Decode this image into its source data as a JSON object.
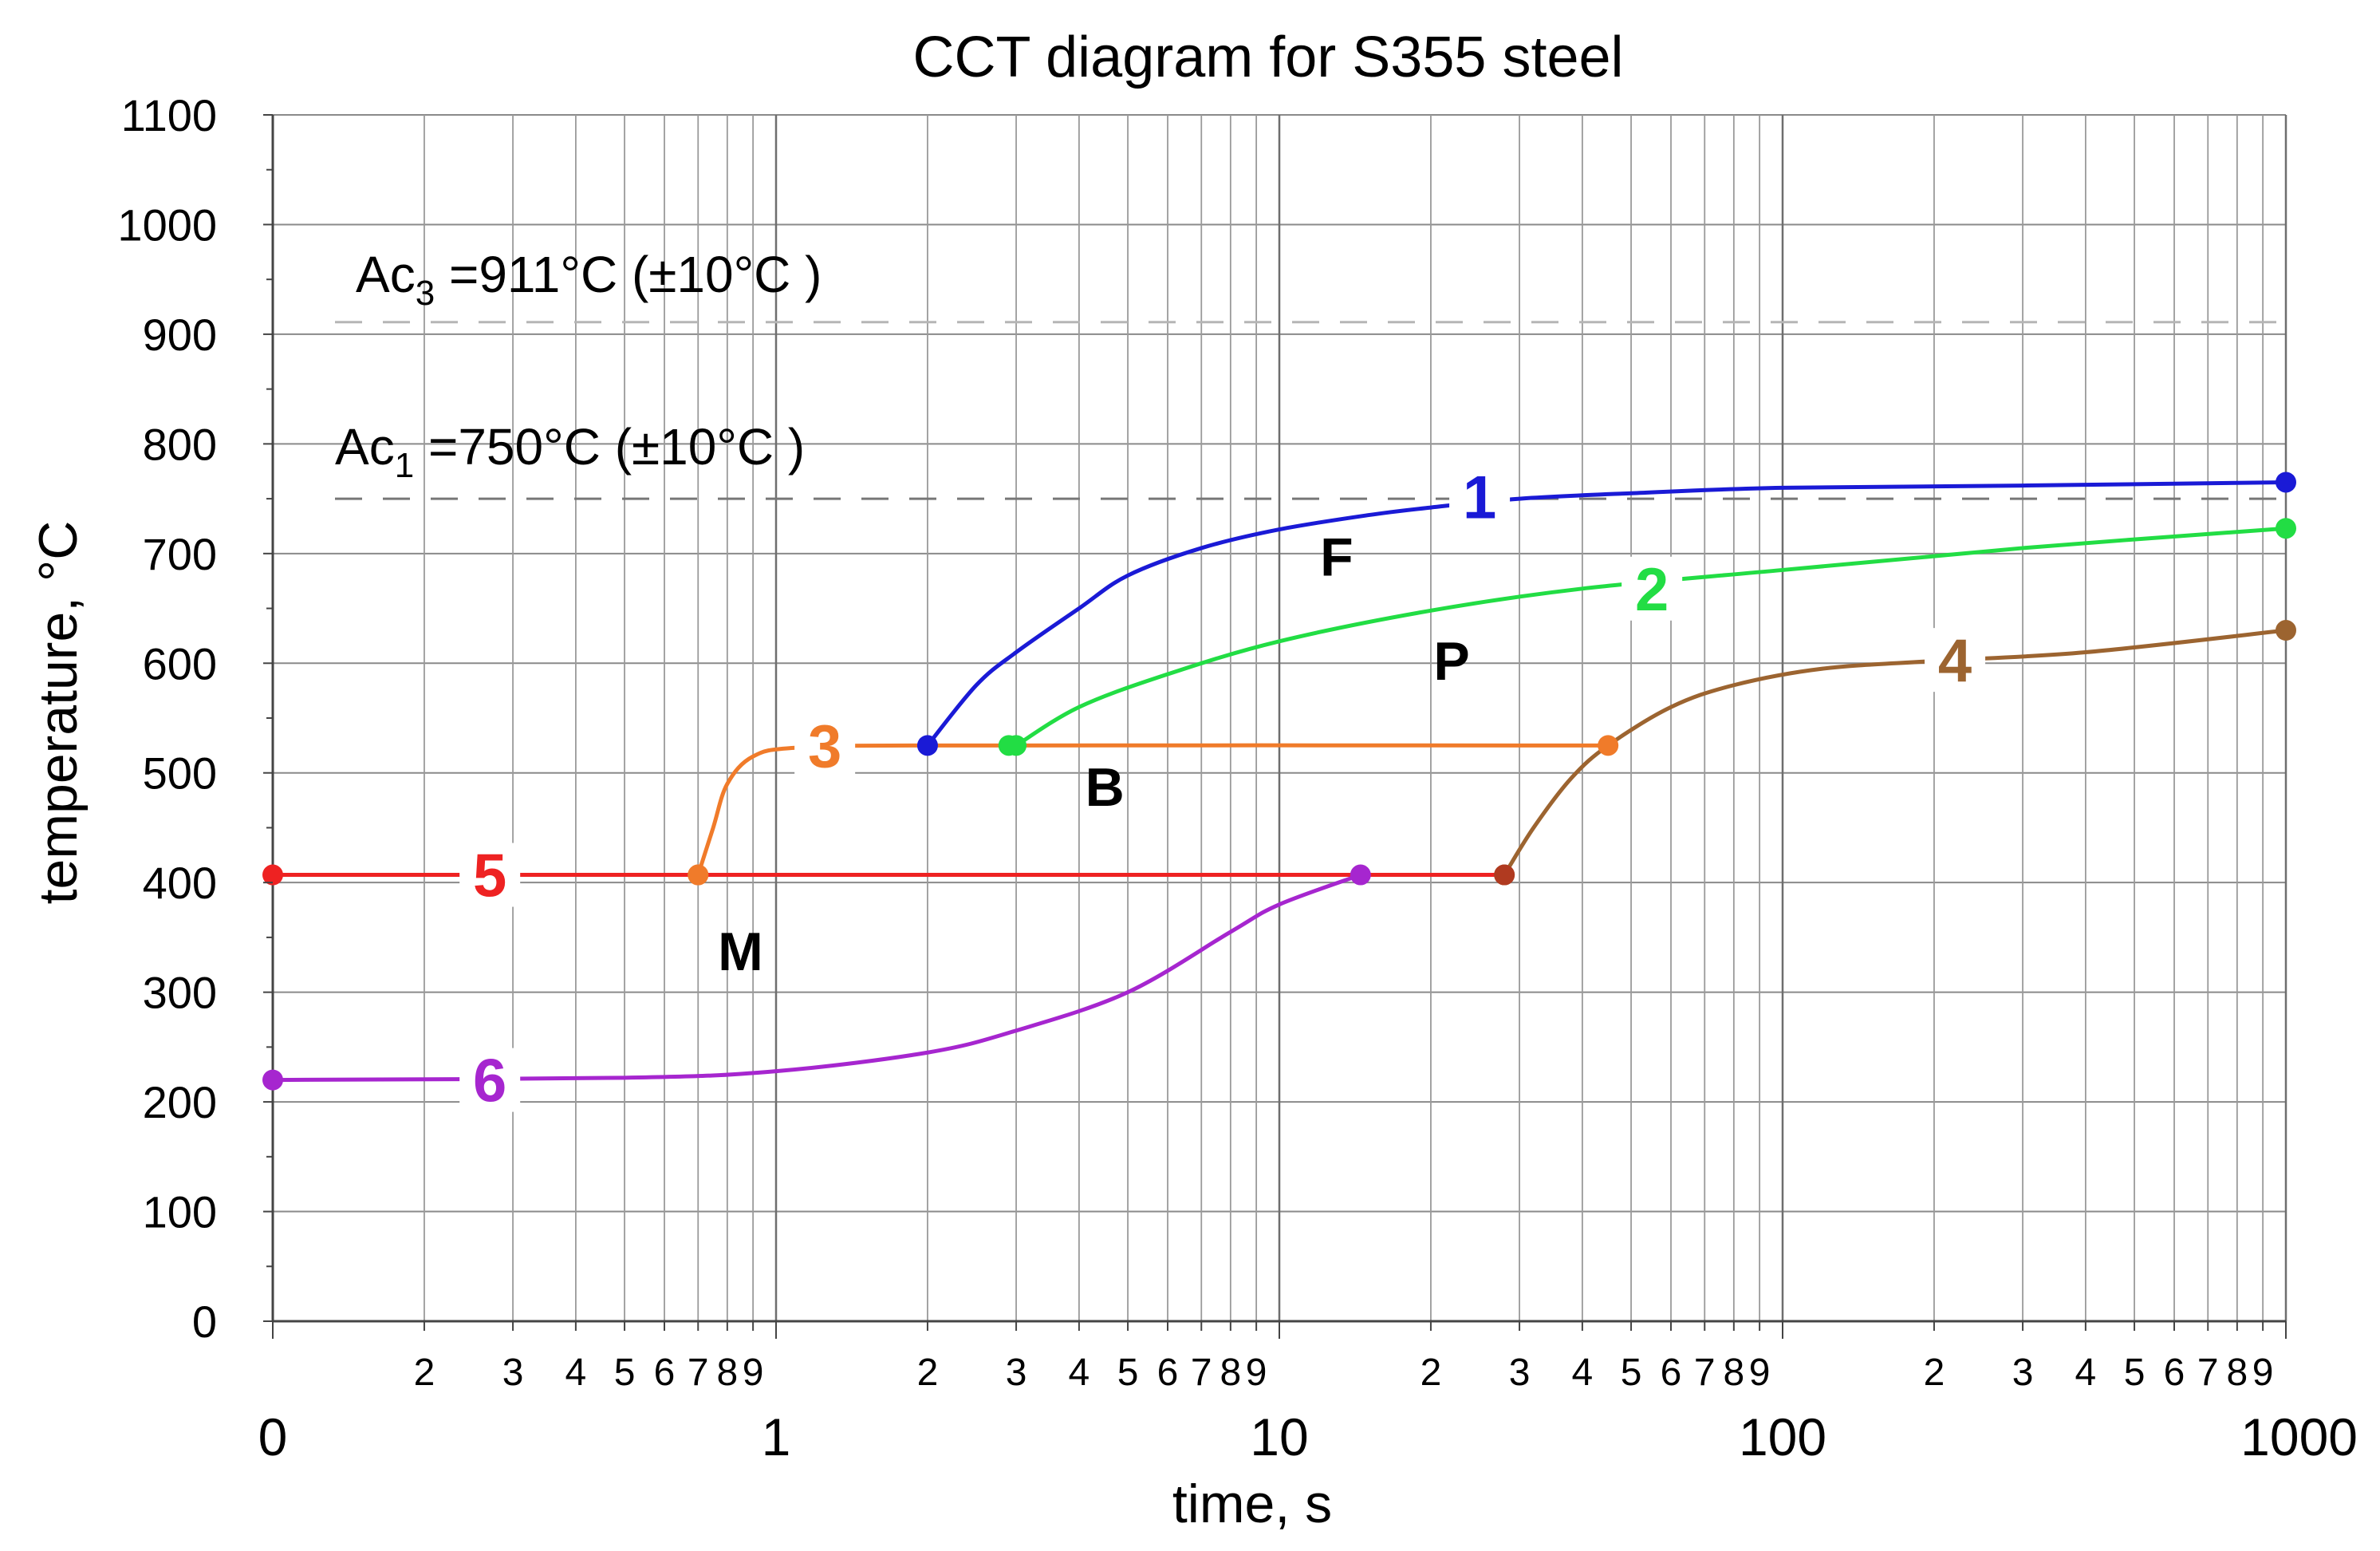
{
  "chart_data": {
    "type": "line",
    "title": "CCT diagram for S355 steel",
    "xlabel": "time, s",
    "ylabel": "temperature, °C",
    "xscale": "log",
    "grid": true,
    "xlim": [
      0.1,
      1000
    ],
    "ylim": [
      0,
      1100
    ],
    "y_ticks": [
      "0",
      "100",
      "200",
      "300",
      "400",
      "500",
      "600",
      "700",
      "800",
      "900",
      "1000",
      "1100"
    ],
    "x_major_ticks": [
      {
        "value": 0.1,
        "label": "0"
      },
      {
        "value": 1,
        "label": "1"
      },
      {
        "value": 10,
        "label": "10"
      },
      {
        "value": 100,
        "label": "100"
      },
      {
        "value": 1000,
        "label": "1000"
      }
    ],
    "x_minor_labels": [
      "2",
      "3",
      "4",
      "5",
      "6",
      "7",
      "8",
      "9"
    ],
    "reference_lines": [
      {
        "name": "Ac3",
        "base": "Ac",
        "sub": "3",
        "rest": " =911°C (±10°C )",
        "value": 911,
        "color": "#b5b5b5"
      },
      {
        "name": "Ac1",
        "base": "Ac",
        "sub": "1",
        "rest": " =750°C (±10°C )",
        "value": 750,
        "color": "#777777"
      }
    ],
    "regions": [
      {
        "label": "F",
        "x": 13,
        "y": 680
      },
      {
        "label": "P",
        "x": 22,
        "y": 585
      },
      {
        "label": "B",
        "x": 4.5,
        "y": 470
      },
      {
        "label": "M",
        "x": 0.85,
        "y": 320
      }
    ],
    "series": [
      {
        "name": "1",
        "label": "1",
        "color": "#1a1ad6",
        "points": [
          [
            2,
            525
          ],
          [
            2.5,
            580
          ],
          [
            3,
            610
          ],
          [
            4,
            650
          ],
          [
            5,
            680
          ],
          [
            7,
            705
          ],
          [
            10,
            722
          ],
          [
            15,
            735
          ],
          [
            20,
            742
          ],
          [
            30,
            750
          ],
          [
            50,
            755
          ],
          [
            100,
            760
          ],
          [
            300,
            762
          ],
          [
            1000,
            765
          ]
        ],
        "markers": [
          [
            2,
            525
          ],
          [
            1000,
            765
          ]
        ],
        "label_at": [
          25,
          752
        ]
      },
      {
        "name": "2",
        "label": "2",
        "color": "#22dd44",
        "points": [
          [
            3,
            525
          ],
          [
            4,
            560
          ],
          [
            6,
            590
          ],
          [
            10,
            620
          ],
          [
            20,
            648
          ],
          [
            40,
            668
          ],
          [
            100,
            685
          ],
          [
            300,
            705
          ],
          [
            1000,
            723
          ]
        ],
        "markers": [
          [
            3,
            525
          ],
          [
            1000,
            723
          ]
        ],
        "label_at": [
          55,
          668
        ]
      },
      {
        "name": "3",
        "label": "3",
        "color": "#f07b2a",
        "points": [
          [
            0.7,
            407
          ],
          [
            0.75,
            450
          ],
          [
            0.8,
            490
          ],
          [
            0.9,
            515
          ],
          [
            1.1,
            523
          ],
          [
            2,
            525
          ],
          [
            45,
            525
          ]
        ],
        "markers": [
          [
            0.7,
            407
          ],
          [
            45,
            525
          ]
        ],
        "label_at": [
          1.25,
          525
        ]
      },
      {
        "name": "4",
        "label": "4",
        "color": "#9c6430",
        "points": [
          [
            28,
            407
          ],
          [
            32,
            450
          ],
          [
            38,
            495
          ],
          [
            45,
            525
          ],
          [
            60,
            560
          ],
          [
            80,
            580
          ],
          [
            120,
            595
          ],
          [
            200,
            602
          ],
          [
            400,
            610
          ],
          [
            1000,
            630
          ]
        ],
        "markers": [
          [
            28,
            407
          ],
          [
            1000,
            630
          ]
        ],
        "label_at": [
          220,
          603
        ]
      },
      {
        "name": "5",
        "label": "5",
        "color": "#ee2222",
        "points": [
          [
            0.1,
            407
          ],
          [
            28,
            407
          ]
        ],
        "markers": [
          [
            0.1,
            407
          ]
        ],
        "label_at": [
          0.27,
          407
        ]
      },
      {
        "name": "6",
        "label": "6",
        "color": "#a626cf",
        "points": [
          [
            0.1,
            220
          ],
          [
            0.5,
            222
          ],
          [
            1,
            228
          ],
          [
            2,
            245
          ],
          [
            3,
            265
          ],
          [
            5,
            300
          ],
          [
            8,
            355
          ],
          [
            10,
            380
          ],
          [
            14.5,
            407
          ]
        ],
        "markers": [
          [
            0.1,
            220
          ],
          [
            14.5,
            407
          ]
        ],
        "label_at": [
          0.27,
          220
        ]
      }
    ],
    "extra_markers": [
      {
        "x": 2.9,
        "y": 525,
        "color": "#22dd44",
        "series": "2 start"
      },
      {
        "x": 0.7,
        "y": 407,
        "color": "#f07b2a",
        "series": "3 start"
      },
      {
        "x": 28,
        "y": 407,
        "color": "#b03a20",
        "series": "4 start"
      }
    ]
  }
}
